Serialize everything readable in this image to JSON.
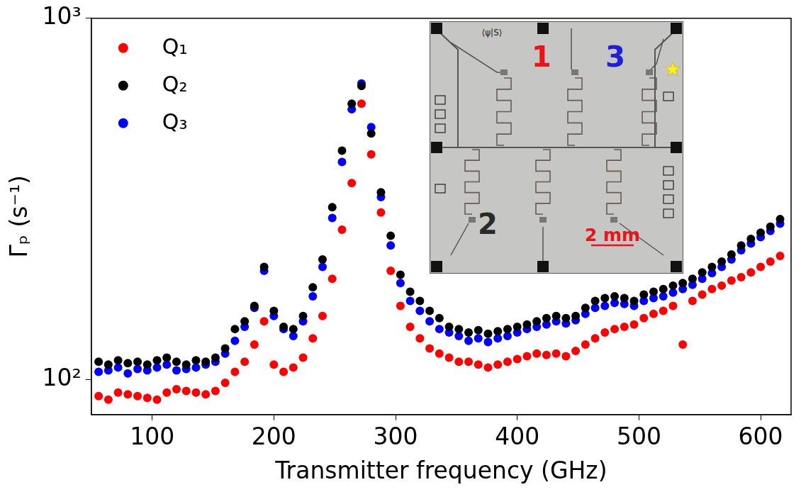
{
  "chart_data": {
    "type": "scatter",
    "x_label": "Transmitter frequency (GHz)",
    "y_label": "Γₚ (s⁻¹)",
    "log": "y",
    "grid": false,
    "legend": "top-left",
    "marker": "circle",
    "xlim": [
      50,
      625
    ],
    "xticks": [
      100,
      200,
      300,
      400,
      500,
      600
    ],
    "ylim": [
      80,
      1000
    ],
    "yticks": [
      {
        "value": 100,
        "label": "10²"
      },
      {
        "value": 1000,
        "label": "10³"
      }
    ],
    "x": [
      56,
      64,
      72,
      80,
      88,
      96,
      104,
      112,
      120,
      128,
      136,
      144,
      152,
      160,
      168,
      176,
      184,
      192,
      200,
      208,
      216,
      224,
      232,
      240,
      248,
      256,
      264,
      272,
      280,
      288,
      296,
      304,
      312,
      320,
      328,
      336,
      344,
      352,
      360,
      368,
      376,
      384,
      392,
      400,
      408,
      416,
      424,
      432,
      440,
      448,
      456,
      464,
      472,
      480,
      488,
      496,
      504,
      512,
      520,
      528,
      536,
      544,
      552,
      560,
      568,
      576,
      584,
      592,
      600,
      608,
      616
    ],
    "series": [
      {
        "name": "Q₁",
        "color": "#ff0000",
        "marker": "circle",
        "values": [
          90,
          88,
          92,
          91,
          90,
          89,
          88,
          92,
          94,
          93,
          92,
          91,
          93,
          98,
          105,
          112,
          125,
          145,
          110,
          105,
          108,
          115,
          130,
          150,
          190,
          260,
          350,
          580,
          420,
          290,
          200,
          160,
          140,
          130,
          122,
          118,
          115,
          112,
          112,
          110,
          108,
          110,
          112,
          114,
          116,
          118,
          117,
          118,
          116,
          120,
          125,
          130,
          135,
          138,
          140,
          142,
          148,
          152,
          155,
          160,
          125,
          165,
          172,
          178,
          182,
          188,
          192,
          198,
          205,
          212,
          220
        ]
      },
      {
        "name": "Q₂",
        "color": "#000000",
        "marker": "circle",
        "values": [
          112,
          110,
          113,
          111,
          112,
          110,
          113,
          115,
          112,
          110,
          113,
          112,
          115,
          122,
          138,
          145,
          160,
          205,
          155,
          140,
          138,
          150,
          180,
          215,
          300,
          430,
          580,
          650,
          480,
          330,
          250,
          195,
          175,
          165,
          155,
          148,
          140,
          138,
          135,
          137,
          134,
          136,
          138,
          140,
          142,
          145,
          148,
          150,
          148,
          150,
          158,
          165,
          168,
          170,
          168,
          165,
          172,
          175,
          178,
          182,
          185,
          190,
          198,
          205,
          212,
          222,
          235,
          245,
          255,
          265,
          278
        ]
      },
      {
        "name": "Q₃",
        "color": "#0000ff",
        "marker": "circle",
        "values": [
          105,
          106,
          108,
          104,
          107,
          106,
          108,
          110,
          106,
          107,
          108,
          110,
          112,
          118,
          128,
          140,
          158,
          200,
          150,
          138,
          132,
          145,
          170,
          205,
          280,
          400,
          560,
          660,
          500,
          320,
          235,
          185,
          165,
          155,
          145,
          138,
          135,
          132,
          128,
          130,
          127,
          130,
          132,
          135,
          138,
          140,
          142,
          145,
          143,
          146,
          152,
          158,
          160,
          163,
          162,
          160,
          165,
          168,
          170,
          174,
          178,
          183,
          190,
          197,
          205,
          215,
          228,
          238,
          248,
          258,
          270
        ]
      }
    ],
    "annotations": [
      {
        "text": "⟨ψ|S⟩",
        "color": "#222222"
      },
      {
        "text": "1",
        "color": "#e8141c"
      },
      {
        "text": "3",
        "color": "#1f1fd6"
      },
      {
        "text": "2",
        "color": "#2a2a2a"
      },
      {
        "text": "2 mm",
        "color": "#e8141c"
      }
    ]
  }
}
